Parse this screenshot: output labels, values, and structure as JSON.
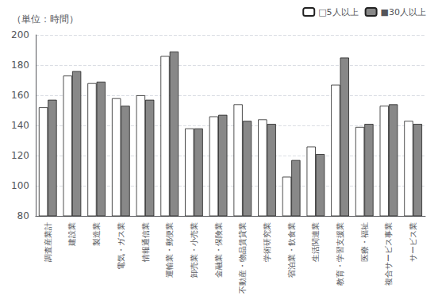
{
  "chart_data": {
    "type": "bar",
    "ylabel": "（単位：時間）",
    "categories": [
      "調査産業計",
      "建設業",
      "製造業",
      "電気・ガス業",
      "情報通信業",
      "運輸業・郵便業",
      "卸売業・小売業",
      "金融業・保険業",
      "不動産・物品賃貸業",
      "学術研究業",
      "宿泊業・飲食業",
      "生活関連業",
      "教育・学習支援業",
      "医療・福祉",
      "複合サービス事業",
      "サービス業"
    ],
    "series": [
      {
        "name": "□5人以上",
        "color": "#ffffff",
        "values": [
          152,
          173,
          168,
          158,
          160,
          186,
          138,
          146,
          154,
          144,
          106,
          126,
          167,
          139,
          153,
          143
        ]
      },
      {
        "name": "■30人以上",
        "color": "#888888",
        "values": [
          157,
          176,
          169,
          153,
          157,
          189,
          138,
          147,
          143,
          141,
          117,
          121,
          185,
          141,
          154,
          141
        ]
      }
    ],
    "ylim": [
      80,
      200
    ],
    "yticks": [
      80,
      100,
      120,
      140,
      160,
      180,
      200
    ],
    "grid": true,
    "legend": "upper right"
  }
}
